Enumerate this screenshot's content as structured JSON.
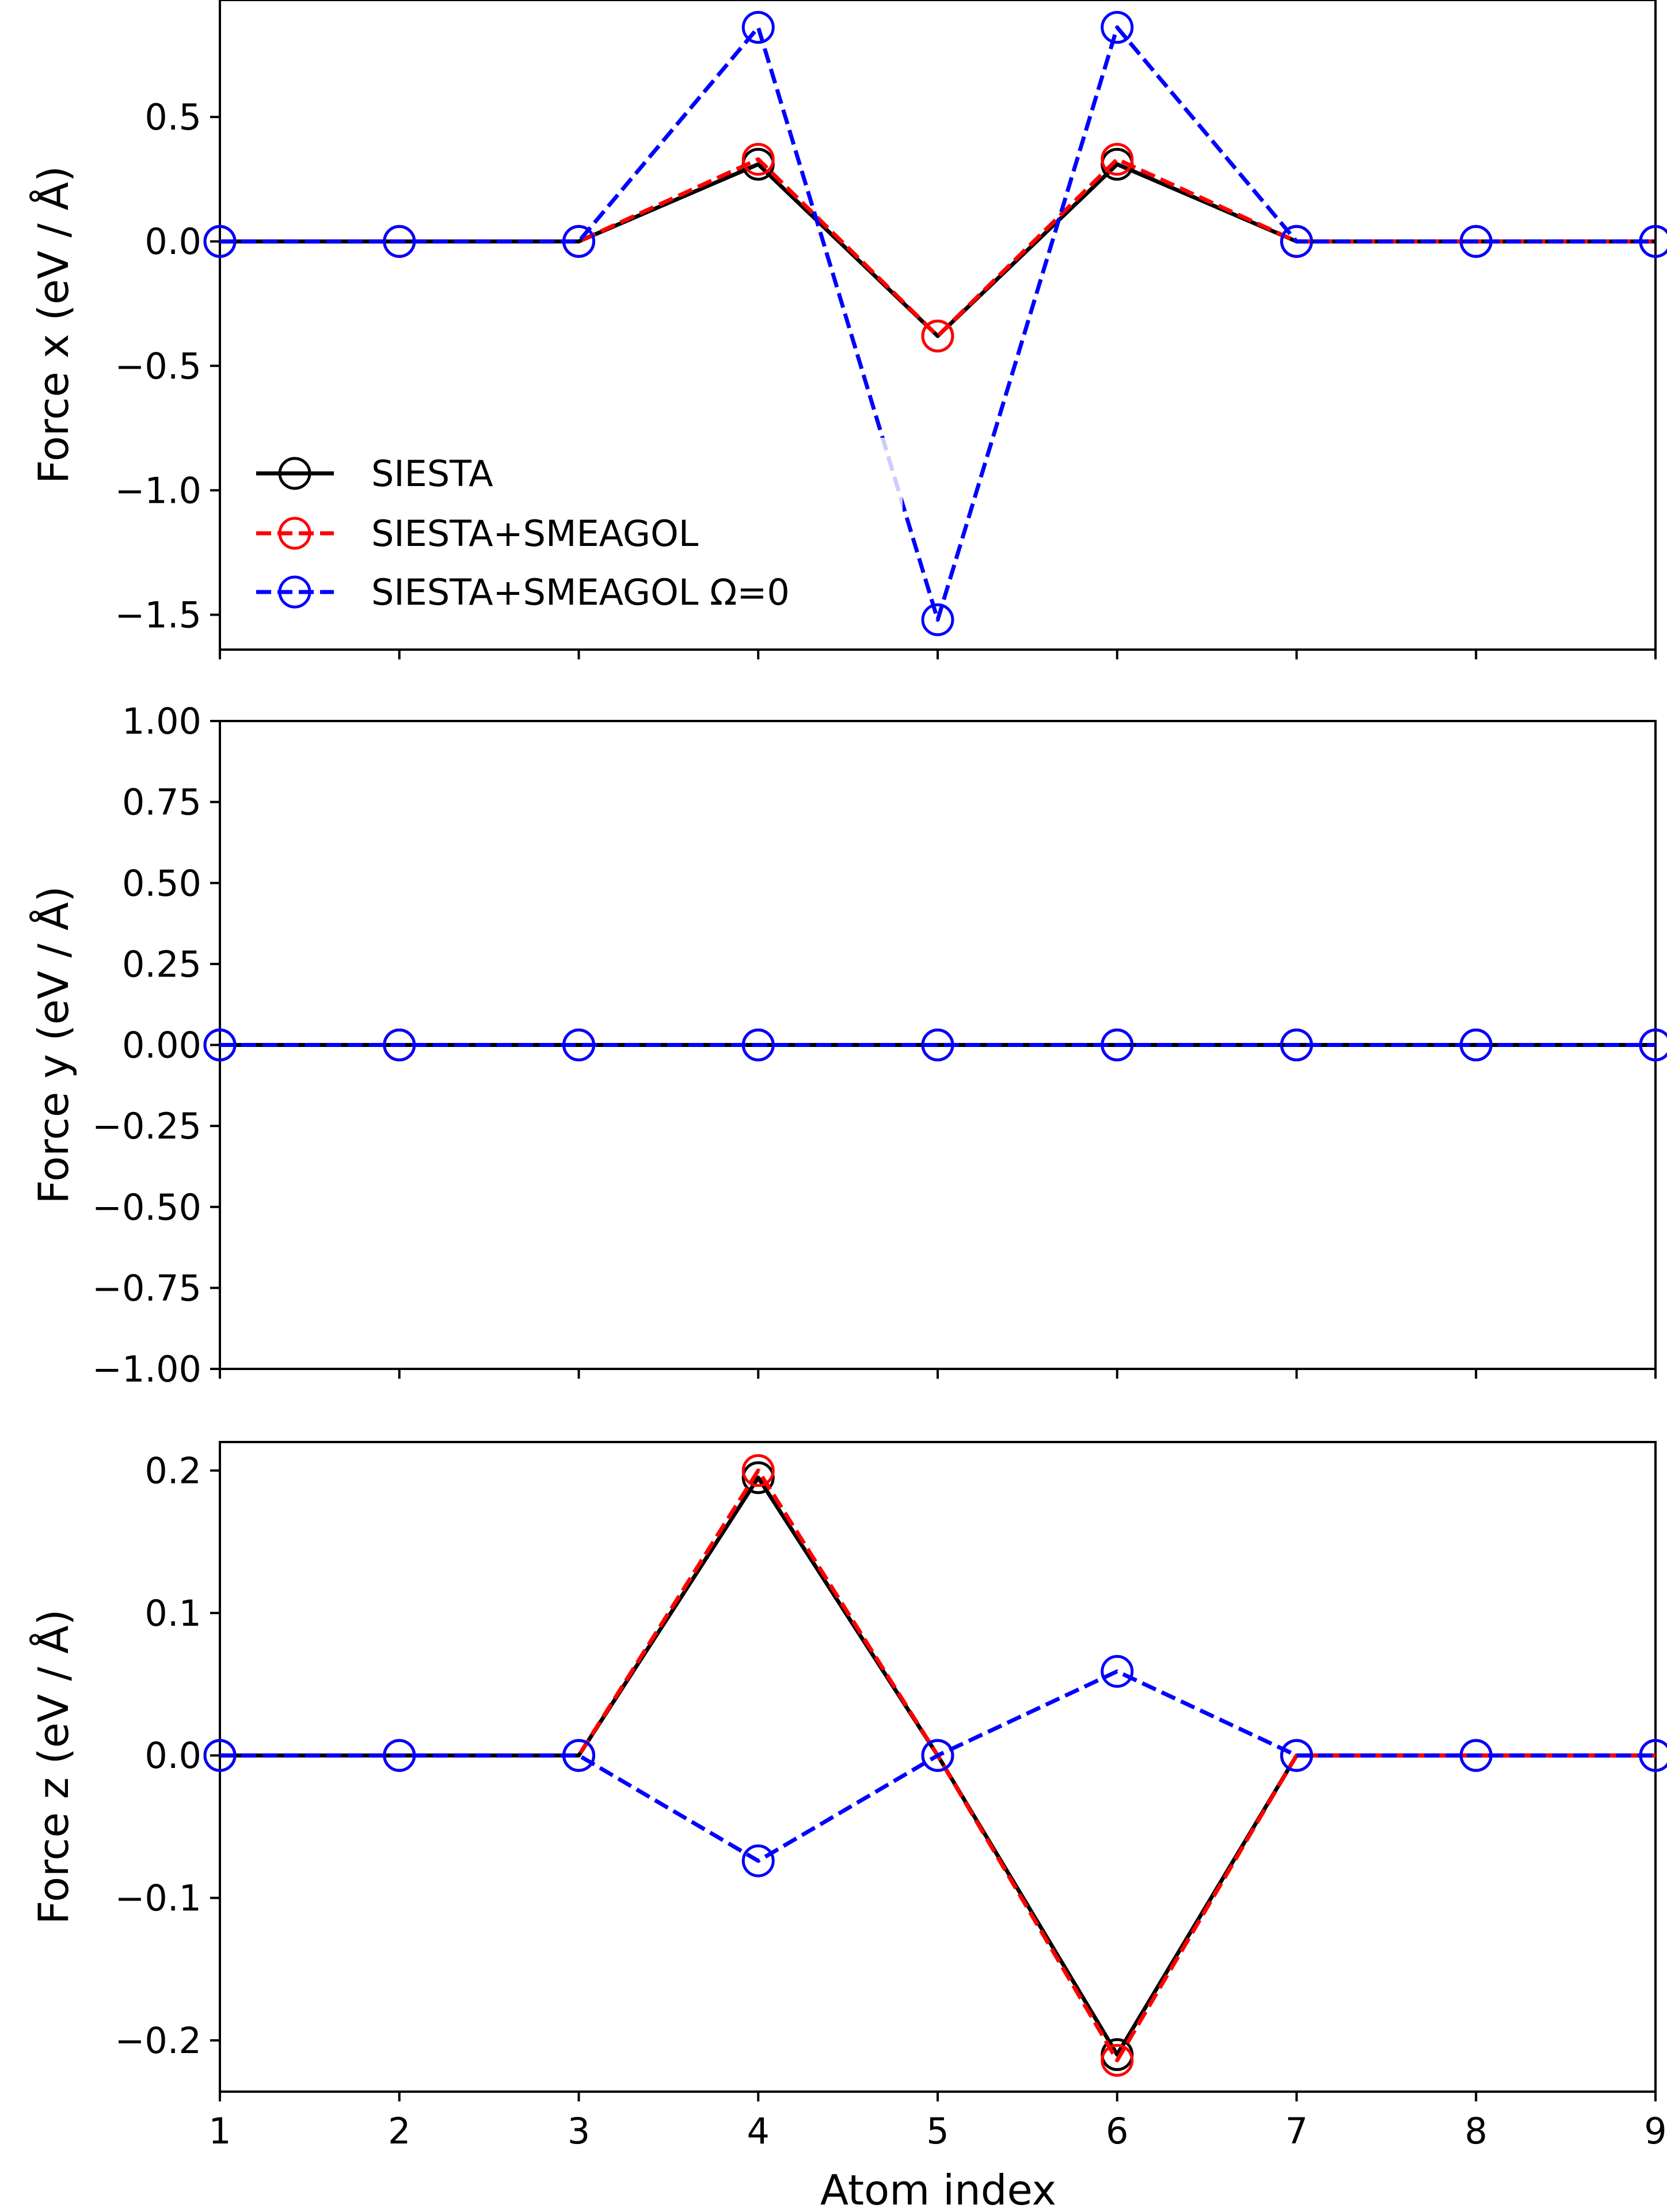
{
  "figure": {
    "xlabel": "Atom index",
    "x_ticks": [
      "1",
      "2",
      "3",
      "4",
      "5",
      "6",
      "7",
      "8",
      "9"
    ]
  },
  "legend": {
    "placement": "lower-left of top panel",
    "entries": [
      {
        "label": "SIESTA",
        "color": "#000000",
        "linestyle": "solid"
      },
      {
        "label": "SIESTA+SMEAGOL",
        "color": "#ff0000",
        "linestyle": "dashed"
      },
      {
        "label": "SIESTA+SMEAGOL Ω=0",
        "color": "#0000ff",
        "linestyle": "dashed"
      }
    ]
  },
  "colors": {
    "siesta": "#000000",
    "smeagol": "#ff0000",
    "smeagol_omega0": "#0000ff"
  },
  "chart_data": [
    {
      "type": "line",
      "title": "",
      "xlabel": "",
      "ylabel": "Force x (eV / Å)",
      "x": [
        1,
        2,
        3,
        4,
        5,
        6,
        7,
        8,
        9
      ],
      "xlim": [
        1,
        9
      ],
      "ylim": [
        -1.64,
        0.97
      ],
      "yticks": [
        0.5,
        0.0,
        -0.5,
        -1.0,
        -1.5
      ],
      "ytick_labels": [
        "0.5",
        "0.0",
        "−0.5",
        "−1.0",
        "−1.5"
      ],
      "series": [
        {
          "name": "SIESTA",
          "color": "#000000",
          "dashed": false,
          "values": [
            0,
            0,
            0,
            0.31,
            -0.38,
            0.31,
            0,
            0,
            0
          ]
        },
        {
          "name": "SIESTA+SMEAGOL",
          "color": "#ff0000",
          "dashed": true,
          "values": [
            0,
            0,
            0,
            0.33,
            -0.38,
            0.33,
            0,
            0,
            0
          ]
        },
        {
          "name": "SIESTA+SMEAGOL Ω=0",
          "color": "#0000ff",
          "dashed": true,
          "values": [
            0,
            0,
            0,
            0.86,
            -1.52,
            0.86,
            0,
            0,
            0
          ]
        }
      ]
    },
    {
      "type": "line",
      "title": "",
      "xlabel": "",
      "ylabel": "Force y (eV / Å)",
      "x": [
        1,
        2,
        3,
        4,
        5,
        6,
        7,
        8,
        9
      ],
      "xlim": [
        1,
        9
      ],
      "ylim": [
        -1.0,
        1.0
      ],
      "yticks": [
        1.0,
        0.75,
        0.5,
        0.25,
        0.0,
        -0.25,
        -0.5,
        -0.75,
        -1.0
      ],
      "ytick_labels": [
        "1.00",
        "0.75",
        "0.50",
        "0.25",
        "0.00",
        "−0.25",
        "−0.50",
        "−0.75",
        "−1.00"
      ],
      "series": [
        {
          "name": "SIESTA",
          "color": "#000000",
          "dashed": false,
          "values": [
            0,
            0,
            0,
            0,
            0,
            0,
            0,
            0,
            0
          ]
        },
        {
          "name": "SIESTA+SMEAGOL",
          "color": "#ff0000",
          "dashed": true,
          "values": [
            0,
            0,
            0,
            0,
            0,
            0,
            0,
            0,
            0
          ]
        },
        {
          "name": "SIESTA+SMEAGOL Ω=0",
          "color": "#0000ff",
          "dashed": true,
          "values": [
            0,
            0,
            0,
            0,
            0,
            0,
            0,
            0,
            0
          ]
        }
      ]
    },
    {
      "type": "line",
      "title": "",
      "xlabel": "Atom index",
      "ylabel": "Force z (eV / Å)",
      "x": [
        1,
        2,
        3,
        4,
        5,
        6,
        7,
        8,
        9
      ],
      "xlim": [
        1,
        9
      ],
      "ylim": [
        -0.236,
        0.22
      ],
      "yticks": [
        0.2,
        0.1,
        0.0,
        -0.1,
        -0.2
      ],
      "ytick_labels": [
        "0.2",
        "0.1",
        "0.0",
        "−0.1",
        "−0.2"
      ],
      "series": [
        {
          "name": "SIESTA",
          "color": "#000000",
          "dashed": false,
          "values": [
            0,
            0,
            0,
            0.195,
            0,
            -0.21,
            0,
            0,
            0
          ]
        },
        {
          "name": "SIESTA+SMEAGOL",
          "color": "#ff0000",
          "dashed": true,
          "values": [
            0,
            0,
            0,
            0.2,
            0,
            -0.214,
            0,
            0,
            0
          ]
        },
        {
          "name": "SIESTA+SMEAGOL Ω=0",
          "color": "#0000ff",
          "dashed": true,
          "values": [
            0,
            0,
            0,
            -0.074,
            0,
            0.059,
            0,
            0,
            0
          ]
        }
      ]
    }
  ]
}
